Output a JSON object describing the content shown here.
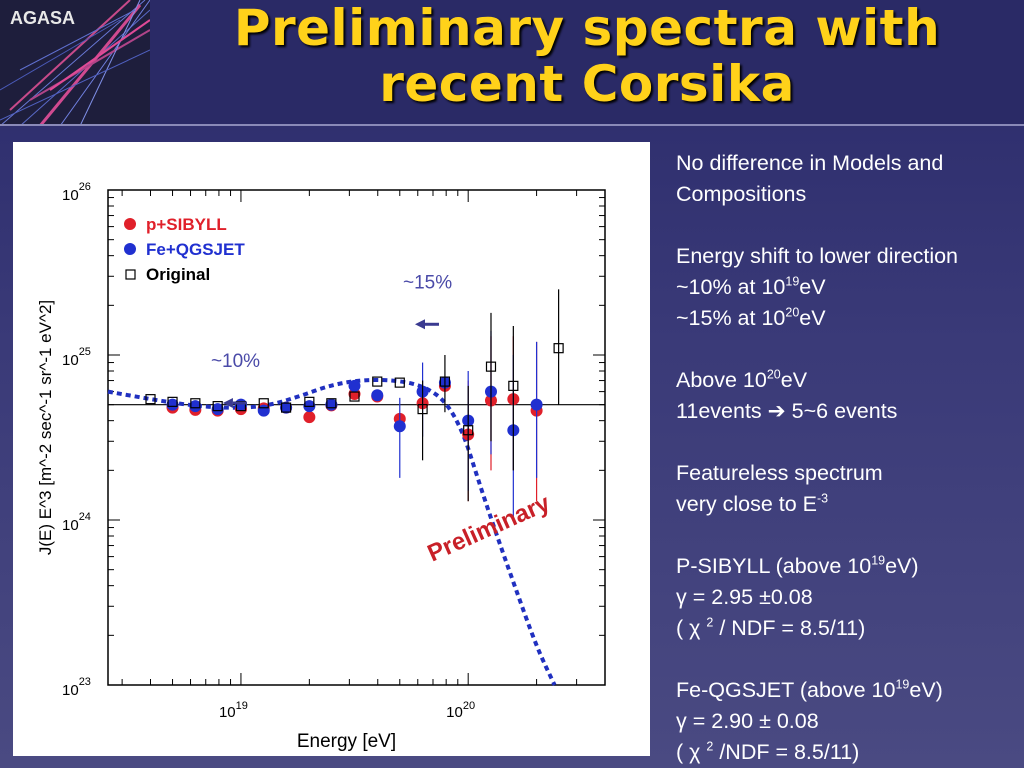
{
  "logo": {
    "text": "AGASA"
  },
  "slide": {
    "title_line1": "Preliminary spectra with",
    "title_line2": "recent Corsika"
  },
  "notes": {
    "n1a": "No difference in Models and",
    "n1b": "Compositions",
    "n2a": "Energy shift to lower direction",
    "n2b_pre": "~10% at 10",
    "n2b_sup": "19",
    "n2b_post": "eV",
    "n2c_pre": "~15% at 10",
    "n2c_sup": "20",
    "n2c_post": "eV",
    "n3a_pre": "Above 10",
    "n3a_sup": "20",
    "n3a_post": "eV",
    "n3b": "11events ➔ 5~6 events",
    "n4a": "Featureless spectrum",
    "n4b_pre": "very close to E",
    "n4b_sup": "-3",
    "n5a_pre": "P-SIBYLL (above 10",
    "n5a_sup": "19",
    "n5a_post": "eV)",
    "n5b": " γ  = 2.95 ±0.08",
    "n5c_pre": "( χ ",
    "n5c_sup": "2",
    "n5c_post": " / NDF = 8.5/11)",
    "n6a_pre": "Fe-QGSJET (above 10",
    "n6a_sup": "19",
    "n6a_post": "eV)",
    "n6b": " γ  = 2.90 ± 0.08",
    "n6c_pre": "( χ ",
    "n6c_sup": "2",
    "n6c_post": " /NDF = 8.5/11)"
  },
  "chart_data": {
    "type": "scatter",
    "title": "",
    "xlabel": "Energy [eV]",
    "ylabel": "J(E) E^3 [m^-2 sec^-1 sr^-1 eV^2]",
    "x_scale": "log",
    "y_scale": "log",
    "xlim": [
      2.6e+18,
      4e+20
    ],
    "ylim": [
      1e+23,
      1e+26
    ],
    "x_ticks": [
      {
        "value": 1e+19,
        "base": "10",
        "exp": "19"
      },
      {
        "value": 1e+20,
        "base": "10",
        "exp": "20"
      }
    ],
    "y_ticks": [
      {
        "value": 1e+23,
        "base": "10",
        "exp": "23"
      },
      {
        "value": 1e+24,
        "base": "10",
        "exp": "24"
      },
      {
        "value": 1e+25,
        "base": "10",
        "exp": "25"
      },
      {
        "value": 1e+26,
        "base": "10",
        "exp": "26"
      }
    ],
    "reference_line": 5e+24,
    "legend": {
      "placement": "top-left",
      "items": [
        {
          "label": "p+SIBYLL",
          "color": "#e0202a",
          "marker": "circle"
        },
        {
          "label": "Fe+QGSJET",
          "color": "#2030d0",
          "marker": "circle"
        },
        {
          "label": "Original",
          "color": "#000000",
          "marker": "open-square"
        }
      ]
    },
    "series": [
      {
        "name": "p+SIBYLL",
        "color": "#e0202a",
        "marker": "circle",
        "points": [
          {
            "x": 5e+18,
            "y": 4.8e+24
          },
          {
            "x": 6.3e+18,
            "y": 4.65e+24
          },
          {
            "x": 7.9e+18,
            "y": 4.6e+24
          },
          {
            "x": 1e+19,
            "y": 4.7e+24
          },
          {
            "x": 1.26e+19,
            "y": 4.75e+24
          },
          {
            "x": 1.58e+19,
            "y": 4.8e+24
          },
          {
            "x": 2e+19,
            "y": 4.2e+24
          },
          {
            "x": 2.5e+19,
            "y": 4.95e+24
          },
          {
            "x": 3.16e+19,
            "y": 5.8e+24
          },
          {
            "x": 3.98e+19,
            "y": 5.6e+24
          },
          {
            "x": 5e+19,
            "y": 4.1e+24
          },
          {
            "x": 6.3e+19,
            "y": 5.1e+24
          },
          {
            "x": 7.9e+19,
            "y": 6.5e+24
          },
          {
            "x": 1e+20,
            "y": 3.3e+24,
            "err_lo": 1.3e+24,
            "err_hi": 7e+24
          },
          {
            "x": 1.26e+20,
            "y": 5.3e+24,
            "err_lo": 2e+24,
            "err_hi": 1.3e+25
          },
          {
            "x": 1.58e+20,
            "y": 5.4e+24,
            "err_lo": 2e+24,
            "err_hi": 1.3e+25
          },
          {
            "x": 2e+20,
            "y": 4.6e+24,
            "err_lo": 1.3e+24,
            "err_hi": 1.2e+25
          }
        ]
      },
      {
        "name": "Fe+QGSJET",
        "color": "#2030d0",
        "marker": "circle",
        "points": [
          {
            "x": 5e+18,
            "y": 5e+24
          },
          {
            "x": 6.3e+18,
            "y": 4.9e+24
          },
          {
            "x": 7.9e+18,
            "y": 4.7e+24
          },
          {
            "x": 1e+19,
            "y": 5e+24
          },
          {
            "x": 1.26e+19,
            "y": 4.6e+24
          },
          {
            "x": 1.58e+19,
            "y": 4.8e+24
          },
          {
            "x": 2e+19,
            "y": 4.9e+24
          },
          {
            "x": 2.5e+19,
            "y": 5e+24
          },
          {
            "x": 3.16e+19,
            "y": 6.5e+24
          },
          {
            "x": 3.98e+19,
            "y": 5.7e+24
          },
          {
            "x": 5e+19,
            "y": 3.7e+24,
            "err_lo": 1.8e+24,
            "err_hi": 5.5e+24
          },
          {
            "x": 6.3e+19,
            "y": 6e+24,
            "err_lo": 3.2e+24,
            "err_hi": 9e+24
          },
          {
            "x": 7.9e+19,
            "y": 6.8e+24
          },
          {
            "x": 1e+20,
            "y": 4e+24,
            "err_lo": 1.5e+24,
            "err_hi": 8e+24
          },
          {
            "x": 1.26e+20,
            "y": 6e+24,
            "err_lo": 2.5e+24,
            "err_hi": 1.4e+25
          },
          {
            "x": 1.58e+20,
            "y": 3.5e+24,
            "err_lo": 1e+24,
            "err_hi": 1e+25
          },
          {
            "x": 2e+20,
            "y": 5e+24,
            "err_lo": 1.8e+24,
            "err_hi": 1.2e+25
          }
        ]
      },
      {
        "name": "Original",
        "color": "#000000",
        "marker": "open-square",
        "points": [
          {
            "x": 4e+18,
            "y": 5.4e+24
          },
          {
            "x": 5e+18,
            "y": 5.2e+24
          },
          {
            "x": 6.3e+18,
            "y": 5.1e+24
          },
          {
            "x": 7.9e+18,
            "y": 4.9e+24
          },
          {
            "x": 1e+19,
            "y": 4.9e+24
          },
          {
            "x": 1.26e+19,
            "y": 5.1e+24
          },
          {
            "x": 1.58e+19,
            "y": 4.8e+24
          },
          {
            "x": 2e+19,
            "y": 5.2e+24
          },
          {
            "x": 2.5e+19,
            "y": 5.1e+24
          },
          {
            "x": 3.16e+19,
            "y": 5.6e+24
          },
          {
            "x": 3.98e+19,
            "y": 6.9e+24
          },
          {
            "x": 5e+19,
            "y": 6.8e+24
          },
          {
            "x": 6.3e+19,
            "y": 4.7e+24,
            "err_lo": 2.3e+24,
            "err_hi": 7e+24
          },
          {
            "x": 7.9e+19,
            "y": 6.9e+24,
            "err_lo": 4.5e+24,
            "err_hi": 1e+25
          },
          {
            "x": 1e+20,
            "y": 3.5e+24,
            "err_lo": 1.3e+24,
            "err_hi": 6.5e+24
          },
          {
            "x": 1.26e+20,
            "y": 8.5e+24,
            "err_lo": 3e+24,
            "err_hi": 1.8e+25
          },
          {
            "x": 1.58e+20,
            "y": 6.5e+24,
            "err_lo": 2e+24,
            "err_hi": 1.5e+25
          },
          {
            "x": 2.5e+20,
            "y": 1.1e+25,
            "err_lo": 5e+24,
            "err_hi": 2.5e+25
          }
        ]
      }
    ],
    "fit_curve": {
      "style": "dashed",
      "color": "#2030c0",
      "points": [
        {
          "x": 2.6e+18,
          "y": 6e+24
        },
        {
          "x": 4e+18,
          "y": 5.4e+24
        },
        {
          "x": 6e+18,
          "y": 4.95e+24
        },
        {
          "x": 9e+18,
          "y": 4.75e+24
        },
        {
          "x": 1.3e+19,
          "y": 4.9e+24
        },
        {
          "x": 1.8e+19,
          "y": 5.6e+24
        },
        {
          "x": 2.5e+19,
          "y": 6.6e+24
        },
        {
          "x": 3.5e+19,
          "y": 7.1e+24
        },
        {
          "x": 5e+19,
          "y": 7e+24
        },
        {
          "x": 6.5e+19,
          "y": 6.4e+24
        },
        {
          "x": 8e+19,
          "y": 5.2e+24
        },
        {
          "x": 9.5e+19,
          "y": 3.4e+24
        },
        {
          "x": 1.1e+20,
          "y": 1.8e+24
        },
        {
          "x": 1.3e+20,
          "y": 9e+23
        },
        {
          "x": 1.6e+20,
          "y": 4e+23
        },
        {
          "x": 2e+20,
          "y": 1.7e+23
        },
        {
          "x": 2.4e+20,
          "y": 1e+23
        }
      ]
    },
    "annotations": [
      {
        "text": "~15%",
        "x": 7e+19,
        "y": 3e+25,
        "arrow": "left"
      },
      {
        "text": "~10%",
        "x": 1e+19,
        "y": 1e+25,
        "arrow": "left"
      },
      {
        "text": "Preliminary",
        "x": 1e+20,
        "y": 1.2e+24,
        "color": "#c82028"
      }
    ]
  }
}
